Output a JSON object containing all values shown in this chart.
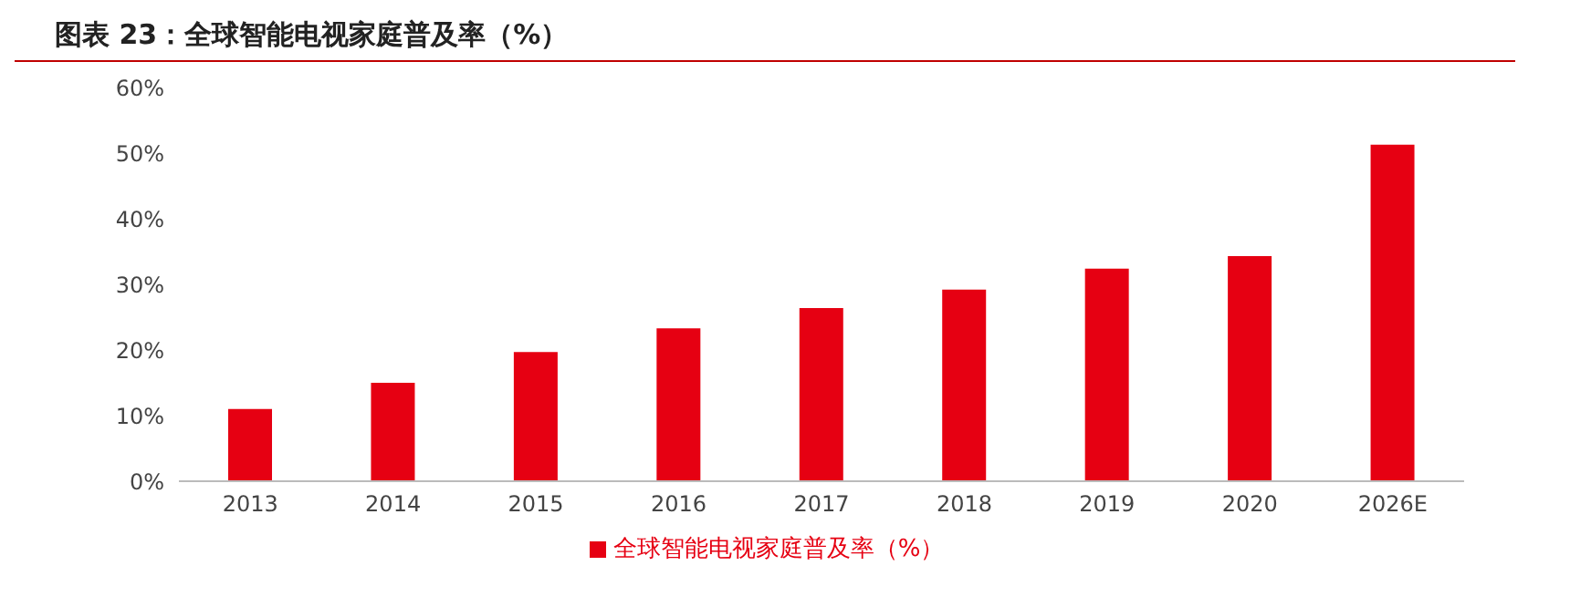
{
  "chart_data": {
    "type": "bar",
    "title": "图表 23：全球智能电视家庭普及率（%）",
    "categories": [
      "2013",
      "2014",
      "2015",
      "2016",
      "2017",
      "2018",
      "2019",
      "2020",
      "2026E"
    ],
    "series": [
      {
        "name": "全球智能电视家庭普及率（%）",
        "color": "#e60012",
        "values": [
          11,
          15,
          19.7,
          23.3,
          26.4,
          29.2,
          32.4,
          34.3,
          51.3
        ]
      }
    ],
    "ylim": [
      0,
      60
    ],
    "yticks": [
      {
        "value": 0,
        "label": "0%"
      },
      {
        "value": 10,
        "label": "10%"
      },
      {
        "value": 20,
        "label": "20%"
      },
      {
        "value": 30,
        "label": "30%"
      },
      {
        "value": 40,
        "label": "40%"
      },
      {
        "value": 50,
        "label": "50%"
      },
      {
        "value": 60,
        "label": "60%"
      }
    ],
    "grid": false,
    "legend": "bottom"
  }
}
